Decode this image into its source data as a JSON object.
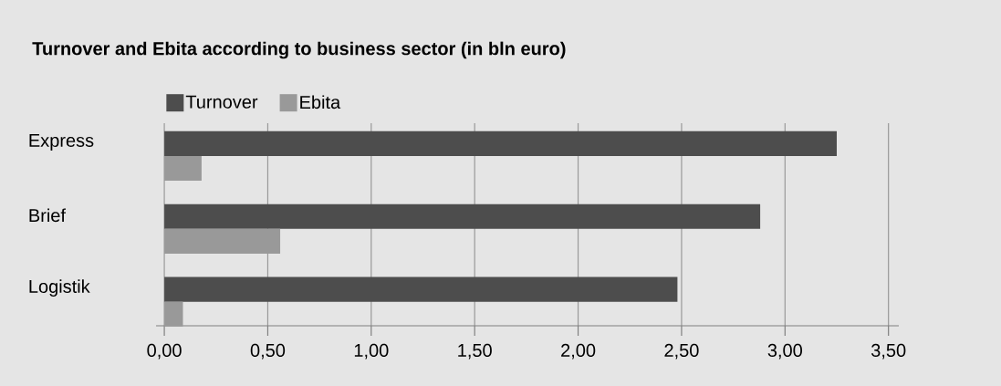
{
  "chart_data": {
    "type": "bar",
    "orientation": "horizontal",
    "title": "Turnover and Ebita according to business sector (in bln euro)",
    "categories": [
      "Express",
      "Brief",
      "Logistik"
    ],
    "series": [
      {
        "name": "Turnover",
        "color": "#4d4d4d",
        "values": [
          3.25,
          2.88,
          2.48
        ]
      },
      {
        "name": "Ebita",
        "color": "#999999",
        "values": [
          0.18,
          0.56,
          0.09
        ]
      }
    ],
    "xlim": [
      -0.04,
      3.55
    ],
    "xticks": [
      {
        "value": 0,
        "label": "0,00"
      },
      {
        "value": 0.5,
        "label": "0,50"
      },
      {
        "value": 1,
        "label": "1,00"
      },
      {
        "value": 1.5,
        "label": "1,50"
      },
      {
        "value": 2,
        "label": "2,00"
      },
      {
        "value": 2.5,
        "label": "2,50"
      },
      {
        "value": 3,
        "label": "3,00"
      },
      {
        "value": 3.5,
        "label": "3,50"
      }
    ],
    "grid": "x",
    "legend": "top left"
  }
}
